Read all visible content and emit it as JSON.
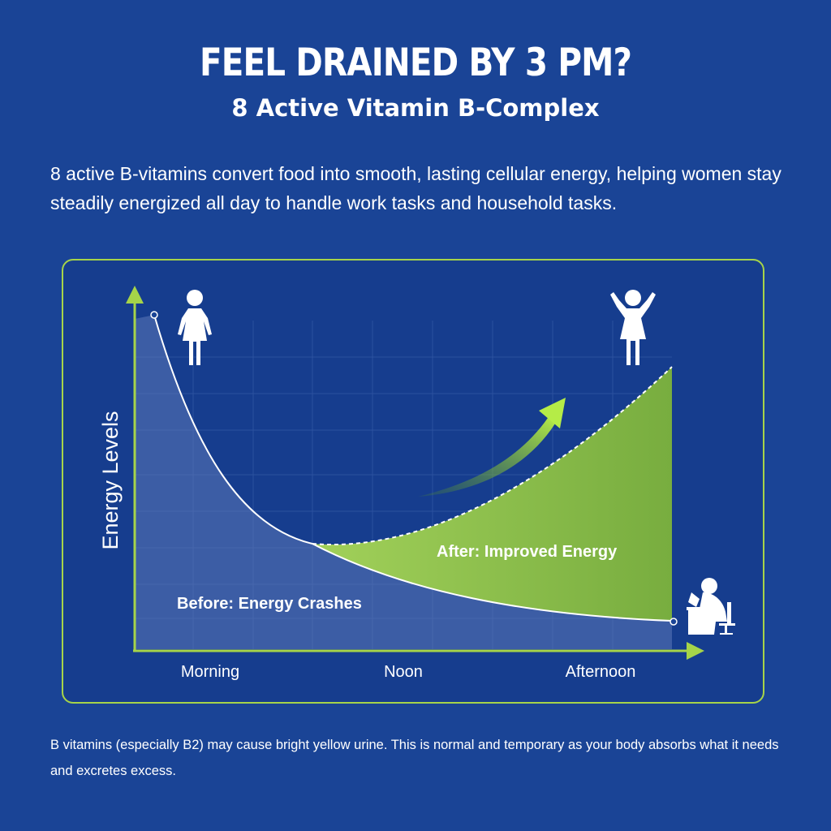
{
  "header": {
    "title": "FEEL DRAINED BY 3 PM?",
    "subtitle": "8 Active Vitamin B-Complex"
  },
  "description": "8 active B-vitamins convert food into smooth, lasting cellular energy, helping women stay steadily energized all day to handle work tasks and household tasks.",
  "chart_data": {
    "type": "area",
    "ylabel": "Energy Levels",
    "xlabel": "",
    "categories": [
      "Morning",
      "Noon",
      "Afternoon"
    ],
    "series": [
      {
        "name": "Before: Energy Crashes",
        "shape": "steep decline from high in the morning to a low in the afternoon"
      },
      {
        "name": "After: Improved Energy",
        "shape": "rises from about noon to high in the afternoon"
      }
    ],
    "grid": true,
    "annotations": [
      "Before: Energy Crashes",
      "After: Improved Energy"
    ],
    "icons": [
      "woman-standing-icon",
      "woman-celebrating-icon",
      "tired-woman-at-desk-icon",
      "rising-arrow-icon"
    ],
    "colors": {
      "before_fill": "#3b5fa8",
      "after_fill": "#8cbf45",
      "axis": "#a6d449",
      "frame": "#a6d449",
      "background": "#1a4496"
    }
  },
  "footnote": "B vitamins (especially B2) may cause bright yellow urine. This is normal and temporary as your body absorbs what it needs and excretes excess."
}
